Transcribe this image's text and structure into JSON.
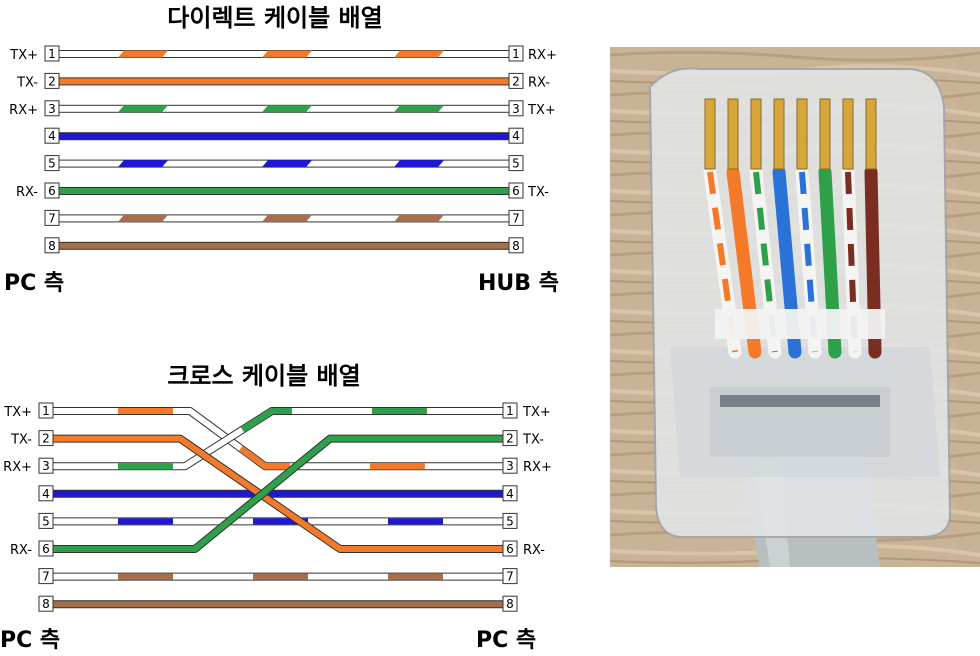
{
  "colors": {
    "orange": "#f47a2a",
    "green": "#2fa04a",
    "blue": "#1f16d8",
    "brown": "#a86e4a",
    "white": "#ffffff",
    "outline": "#444444"
  },
  "straight": {
    "title": "다이렉트 케이블 배열",
    "left_side": "PC 측",
    "right_side": "HUB 측",
    "rows": [
      {
        "pin": "1",
        "left": "TX+",
        "right": "RX+",
        "color": "orange",
        "solid": false
      },
      {
        "pin": "2",
        "left": "TX-",
        "right": "RX-",
        "color": "orange",
        "solid": true
      },
      {
        "pin": "3",
        "left": "RX+",
        "right": "TX+",
        "color": "green",
        "solid": false
      },
      {
        "pin": "4",
        "left": "",
        "right": "",
        "color": "blue",
        "solid": true
      },
      {
        "pin": "5",
        "left": "",
        "right": "",
        "color": "blue",
        "solid": false
      },
      {
        "pin": "6",
        "left": "RX-",
        "right": "TX-",
        "color": "green",
        "solid": true
      },
      {
        "pin": "7",
        "left": "",
        "right": "",
        "color": "brown",
        "solid": false
      },
      {
        "pin": "8",
        "left": "",
        "right": "",
        "color": "brown",
        "solid": true
      }
    ]
  },
  "cross": {
    "title": "크로스 케이블 배열",
    "left_side": "PC 측",
    "right_side": "PC 측",
    "rows": [
      {
        "pin": "1",
        "left": "TX+",
        "right": "TX+"
      },
      {
        "pin": "2",
        "left": "TX-",
        "right": "TX-"
      },
      {
        "pin": "3",
        "left": "RX+",
        "right": "RX+"
      },
      {
        "pin": "4",
        "left": "",
        "right": ""
      },
      {
        "pin": "5",
        "left": "",
        "right": ""
      },
      {
        "pin": "6",
        "left": "RX-",
        "right": "RX-"
      },
      {
        "pin": "7",
        "left": "",
        "right": ""
      },
      {
        "pin": "8",
        "left": "",
        "right": ""
      }
    ],
    "wires": [
      {
        "from": "1",
        "to": "3",
        "color": "orange",
        "solid": false
      },
      {
        "from": "2",
        "to": "6",
        "color": "orange",
        "solid": true
      },
      {
        "from": "3",
        "to": "1",
        "color": "green",
        "solid": false
      },
      {
        "from": "4",
        "to": "4",
        "color": "blue",
        "solid": true
      },
      {
        "from": "5",
        "to": "5",
        "color": "blue",
        "solid": false
      },
      {
        "from": "6",
        "to": "2",
        "color": "green",
        "solid": true
      },
      {
        "from": "7",
        "to": "7",
        "color": "brown",
        "solid": false
      },
      {
        "from": "8",
        "to": "8",
        "color": "brown",
        "solid": true
      }
    ]
  },
  "photo": {
    "subject": "RJ45 connector with T568B wiring on light wood surface",
    "wire_order": [
      "white-orange",
      "orange",
      "white-green",
      "blue",
      "white-blue",
      "green",
      "white-brown",
      "brown"
    ]
  }
}
